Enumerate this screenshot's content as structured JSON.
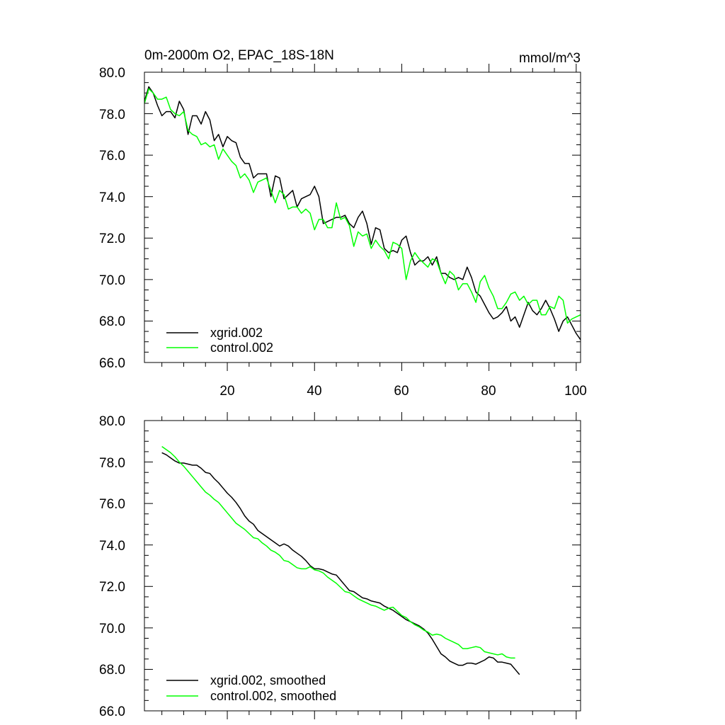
{
  "chart_data": [
    {
      "type": "line",
      "title": "0m-2000m O2, EPAC_18S-18N",
      "units": "mmol/m^3",
      "xlim": [
        1,
        101
      ],
      "ylim": [
        66,
        80
      ],
      "x_ticks": [
        20,
        40,
        60,
        80,
        100
      ],
      "y_ticks": [
        66,
        68,
        70,
        72,
        74,
        76,
        78,
        80
      ],
      "y_tick_labels": [
        "66.0",
        "68.0",
        "70.0",
        "72.0",
        "74.0",
        "76.0",
        "78.0",
        "80.0"
      ],
      "x_tick_labels": [
        "20",
        "40",
        "60",
        "80",
        "100"
      ],
      "legend_position": "bottom-left",
      "series": [
        {
          "name": "xgrid.002",
          "color": "#000000",
          "x_start": 1,
          "values": [
            78.6,
            79.3,
            79.0,
            78.4,
            77.9,
            78.1,
            78.1,
            77.8,
            78.6,
            78.2,
            77.0,
            77.9,
            77.9,
            77.5,
            78.1,
            77.7,
            76.7,
            77.0,
            76.4,
            76.9,
            76.7,
            76.6,
            75.9,
            75.6,
            75.6,
            74.9,
            75.1,
            75.1,
            75.1,
            74.0,
            75.0,
            74.9,
            73.9,
            74.1,
            74.3,
            73.5,
            73.9,
            74.0,
            74.1,
            74.5,
            74.0,
            72.7,
            72.8,
            72.9,
            73.0,
            73.0,
            73.1,
            72.7,
            72.5,
            73.0,
            73.3,
            72.7,
            71.7,
            72.5,
            72.4,
            71.5,
            71.3,
            71.4,
            71.3,
            71.9,
            72.1,
            71.3,
            70.7,
            70.9,
            70.9,
            71.1,
            70.7,
            71.1,
            70.3,
            70.3,
            70.1,
            70.0,
            70.1,
            70.0,
            70.6,
            70.1,
            69.4,
            69.2,
            68.8,
            68.4,
            68.1,
            68.2,
            68.4,
            68.7,
            68.0,
            68.2,
            67.7,
            68.3,
            68.9,
            68.5,
            68.3,
            68.6,
            69.0,
            68.6,
            68.1,
            67.5,
            68.0,
            68.2,
            67.8,
            67.4,
            67.1
          ]
        },
        {
          "name": "control.002",
          "color": "#00ff00",
          "x_start": 1,
          "values": [
            78.5,
            79.2,
            79.0,
            78.7,
            78.7,
            78.8,
            78.2,
            78.0,
            77.9,
            78.1,
            77.2,
            77.0,
            76.9,
            76.5,
            76.6,
            76.4,
            76.5,
            75.8,
            76.3,
            76.0,
            75.7,
            75.5,
            74.9,
            75.1,
            74.8,
            74.2,
            74.7,
            74.8,
            74.9,
            74.3,
            73.7,
            74.3,
            74.1,
            73.4,
            73.5,
            73.5,
            73.2,
            73.4,
            73.2,
            72.4,
            72.9,
            72.9,
            72.5,
            72.5,
            73.7,
            72.9,
            73.0,
            72.6,
            71.6,
            72.3,
            72.1,
            72.2,
            71.5,
            71.9,
            71.6,
            71.4,
            71.0,
            71.8,
            71.7,
            71.5,
            70.0,
            70.9,
            71.3,
            71.0,
            70.8,
            70.6,
            71.0,
            70.9,
            70.3,
            69.8,
            70.4,
            70.2,
            69.5,
            69.8,
            69.8,
            69.4,
            68.9,
            69.9,
            70.2,
            69.6,
            69.2,
            68.6,
            68.6,
            68.9,
            69.3,
            69.4,
            69.0,
            69.2,
            68.8,
            69.0,
            69.0,
            68.3,
            68.3,
            68.7,
            68.6,
            69.2,
            69.0,
            67.9,
            68.1,
            68.2,
            68.3
          ]
        }
      ]
    },
    {
      "type": "line",
      "xlim": [
        1,
        101
      ],
      "ylim": [
        66,
        80
      ],
      "x_ticks": [
        20,
        40,
        60,
        80,
        100
      ],
      "y_ticks": [
        66,
        68,
        70,
        72,
        74,
        76,
        78,
        80
      ],
      "y_tick_labels": [
        "66.0",
        "68.0",
        "70.0",
        "72.0",
        "74.0",
        "76.0",
        "78.0",
        "80.0"
      ],
      "legend_position": "bottom-left",
      "series": [
        {
          "name": "xgrid.002, smoothed",
          "color": "#000000",
          "x_start": 5,
          "values": [
            78.45,
            78.35,
            78.2,
            78.05,
            77.95,
            77.95,
            77.9,
            77.85,
            77.85,
            77.7,
            77.5,
            77.45,
            77.2,
            77.0,
            76.75,
            76.5,
            76.3,
            76.05,
            75.75,
            75.4,
            75.15,
            75.0,
            74.7,
            74.55,
            74.4,
            74.25,
            74.1,
            73.95,
            74.05,
            73.95,
            73.75,
            73.6,
            73.45,
            73.25,
            73.0,
            72.85,
            72.85,
            72.8,
            72.7,
            72.6,
            72.55,
            72.3,
            72.05,
            71.8,
            71.75,
            71.6,
            71.45,
            71.4,
            71.3,
            71.25,
            71.2,
            71.05,
            70.95,
            70.85,
            70.7,
            70.55,
            70.4,
            70.3,
            70.2,
            70.1,
            69.95,
            69.75,
            69.45,
            69.1,
            68.75,
            68.6,
            68.4,
            68.3,
            68.2,
            68.2,
            68.3,
            68.3,
            68.25,
            68.35,
            68.45,
            68.6,
            68.55,
            68.35,
            68.35,
            68.3,
            68.25,
            68.0,
            67.75
          ]
        },
        {
          "name": "control.002, smoothed",
          "color": "#00ff00",
          "x_start": 5,
          "values": [
            78.75,
            78.6,
            78.45,
            78.25,
            78.0,
            77.8,
            77.55,
            77.3,
            77.05,
            76.8,
            76.55,
            76.4,
            76.2,
            76.05,
            75.8,
            75.55,
            75.3,
            75.05,
            74.9,
            74.75,
            74.55,
            74.35,
            74.3,
            74.1,
            73.95,
            73.75,
            73.65,
            73.5,
            73.25,
            73.2,
            73.05,
            72.9,
            72.85,
            72.85,
            72.95,
            72.8,
            72.75,
            72.65,
            72.45,
            72.3,
            72.15,
            71.95,
            71.75,
            71.7,
            71.55,
            71.4,
            71.3,
            71.2,
            71.1,
            71.05,
            70.95,
            70.85,
            70.95,
            71.0,
            70.8,
            70.6,
            70.5,
            70.3,
            70.15,
            70.05,
            69.9,
            69.8,
            69.65,
            69.7,
            69.65,
            69.5,
            69.4,
            69.3,
            69.2,
            69.0,
            69.0,
            69.05,
            69.1,
            69.05,
            68.85,
            68.8,
            68.75,
            68.7,
            68.75,
            68.6,
            68.55,
            68.55
          ]
        }
      ]
    }
  ]
}
